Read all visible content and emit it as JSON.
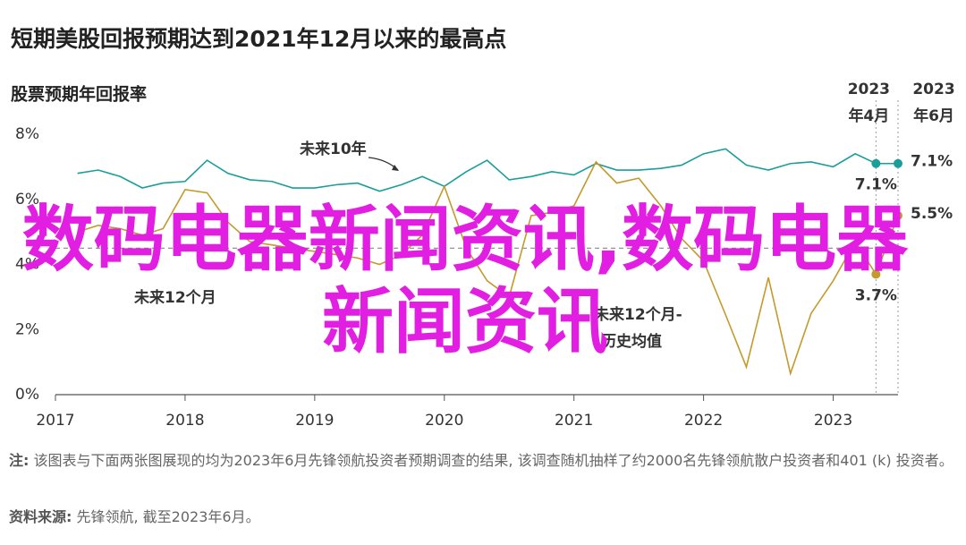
{
  "chart_data": {
    "type": "line",
    "title": "短期美股回报预期达到2021年12月以来的最高点",
    "subtitle": "股票预期年回报率",
    "x": [
      2017.17,
      2017.33,
      2017.5,
      2017.67,
      2017.83,
      2018,
      2018.17,
      2018.33,
      2018.5,
      2018.67,
      2018.83,
      2019,
      2019.17,
      2019.33,
      2019.5,
      2019.67,
      2019.83,
      2020,
      2020.17,
      2020.33,
      2020.5,
      2020.67,
      2020.83,
      2021,
      2021.17,
      2021.33,
      2021.5,
      2021.67,
      2021.83,
      2022,
      2022.17,
      2022.33,
      2022.5,
      2022.67,
      2022.83,
      2023,
      2023.17,
      2023.33,
      2023.5
    ],
    "series": [
      {
        "color": "#1a9e9a",
        "values": [
          6.8,
          6.9,
          6.7,
          6.35,
          6.5,
          6.55,
          7.2,
          6.8,
          6.6,
          6.55,
          6.35,
          6.35,
          6.45,
          6.5,
          6.25,
          6.45,
          6.7,
          6.4,
          6.85,
          7.2,
          6.6,
          6.7,
          6.85,
          6.75,
          7.1,
          6.9,
          6.9,
          6.95,
          7.05,
          7.4,
          7.55,
          7.05,
          6.9,
          7.1,
          7.15,
          7.0,
          7.4,
          7.1,
          7.1
        ],
        "value_labels": [
          null,
          null,
          null,
          null,
          null,
          null,
          null,
          null,
          null,
          null,
          null,
          null,
          null,
          null,
          null,
          null,
          null,
          null,
          null,
          null,
          null,
          null,
          null,
          null,
          null,
          null,
          null,
          null,
          null,
          null,
          null,
          null,
          null,
          null,
          null,
          null,
          null,
          "7.1%",
          "7.1%"
        ]
      },
      {
        "color": "#c59a2c",
        "values": [
          5.0,
          5.2,
          5.1,
          4.9,
          5.1,
          6.3,
          6.2,
          5.3,
          4.7,
          4.6,
          4.5,
          4.4,
          4.3,
          4.2,
          4.0,
          4.3,
          4.9,
          6.4,
          4.5,
          3.5,
          3.0,
          5.5,
          5.6,
          5.8,
          7.15,
          6.5,
          6.65,
          5.8,
          4.8,
          4.1,
          2.45,
          0.85,
          3.6,
          0.65,
          2.5,
          3.5,
          4.7,
          3.7,
          5.5
        ],
        "value_labels": [
          null,
          null,
          null,
          null,
          null,
          null,
          null,
          null,
          null,
          null,
          null,
          null,
          null,
          null,
          null,
          null,
          null,
          null,
          null,
          null,
          null,
          null,
          null,
          null,
          null,
          null,
          null,
          null,
          null,
          null,
          null,
          null,
          null,
          null,
          null,
          null,
          null,
          "3.7%",
          "5.5%"
        ]
      }
    ],
    "reference_line": 4.5,
    "xlim": [
      2017,
      2023.5
    ],
    "xticks": [
      2017,
      2018,
      2019,
      2020,
      2021,
      2022,
      2023
    ],
    "ylim": [
      0,
      8
    ],
    "yticks": [
      {
        "value": 0,
        "label": "0%"
      },
      {
        "value": 2,
        "label": "2%"
      },
      {
        "value": 4,
        "label": "4%"
      },
      {
        "value": 6,
        "label": "6%"
      },
      {
        "value": 8,
        "label": "8%"
      }
    ],
    "markers": [
      {
        "x": 2023.33,
        "year": "2023",
        "month": "年4月"
      },
      {
        "x": 2023.5,
        "year": "2023",
        "month": "年6月"
      }
    ],
    "annotations": [
      "未来10年",
      "未来12个月",
      "未来12个月-",
      "历史均值"
    ],
    "note_label": "注:",
    "note": "该图表与下面两张图展现的均为2023年6月先锋领航投资者预期调查的结果, 该调查随机抽样了约2000名先锋领航散户投资者和401 (k) 投资者。",
    "source_label": "资料来源:",
    "source": "先锋领航, 截至2023年6月。",
    "watermark": "数码电器新闻资讯,数码电器新闻资讯"
  }
}
